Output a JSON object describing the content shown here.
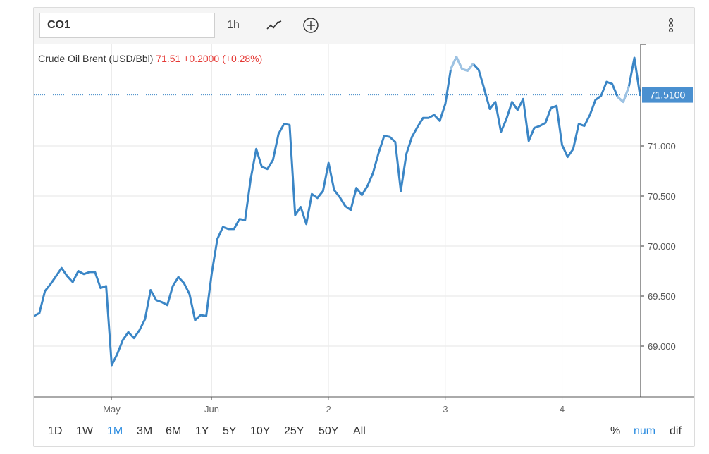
{
  "toolbar": {
    "symbol_value": "CO1",
    "interval": "1h",
    "chart_type_icon": "line-chart-icon",
    "add_icon": "plus-circle-icon",
    "menu_icon": "vertical-ellipsis-icon"
  },
  "legend": {
    "name": "Crude Oil Brent (USD/Bbl)",
    "price": "71.51",
    "change": "+0.2000",
    "change_pct": "(+0.28%)"
  },
  "last_price_label": "71.5100",
  "ranges": [
    {
      "label": "1D",
      "active": false
    },
    {
      "label": "1W",
      "active": false
    },
    {
      "label": "1M",
      "active": true
    },
    {
      "label": "3M",
      "active": false
    },
    {
      "label": "6M",
      "active": false
    },
    {
      "label": "1Y",
      "active": false
    },
    {
      "label": "5Y",
      "active": false
    },
    {
      "label": "10Y",
      "active": false
    },
    {
      "label": "25Y",
      "active": false
    },
    {
      "label": "50Y",
      "active": false
    },
    {
      "label": "All",
      "active": false
    }
  ],
  "modes": [
    {
      "label": "%",
      "active": false
    },
    {
      "label": "num",
      "active": true
    },
    {
      "label": "dif",
      "active": false
    }
  ],
  "colors": {
    "line": "#3b86c6",
    "line_light": "#9ec3e3",
    "accent": "#2c8ce0",
    "red": "#e53935",
    "price_tag": "#4a90d0"
  },
  "chart_data": {
    "type": "line",
    "title": "Crude Oil Brent (USD/Bbl)",
    "x_labels": [
      {
        "label": "May",
        "index": 14
      },
      {
        "label": "Jun",
        "index": 32
      },
      {
        "label": "2",
        "index": 53
      },
      {
        "label": "3",
        "index": 74
      },
      {
        "label": "4",
        "index": 95
      }
    ],
    "y_ticks": [
      "69.000",
      "69.500",
      "70.000",
      "70.500",
      "71.000"
    ],
    "y_tick_values": [
      69.0,
      69.5,
      70.0,
      70.5,
      71.0
    ],
    "ylim": [
      68.6,
      72.0
    ],
    "last_value": 71.51,
    "values": [
      69.3,
      69.33,
      69.55,
      69.62,
      69.7,
      69.78,
      69.7,
      69.64,
      69.75,
      69.72,
      69.74,
      69.74,
      69.58,
      69.6,
      68.81,
      68.92,
      69.06,
      69.14,
      69.08,
      69.16,
      69.27,
      69.56,
      69.46,
      69.44,
      69.41,
      69.6,
      69.69,
      69.63,
      69.52,
      69.26,
      69.31,
      69.3,
      69.73,
      70.07,
      70.19,
      70.17,
      70.17,
      70.27,
      70.26,
      70.67,
      70.97,
      70.79,
      70.77,
      70.86,
      71.12,
      71.22,
      71.21,
      70.31,
      70.39,
      70.22,
      70.52,
      70.48,
      70.55,
      70.83,
      70.56,
      70.49,
      70.4,
      70.36,
      70.58,
      70.51,
      70.6,
      70.73,
      70.93,
      71.1,
      71.09,
      71.04,
      70.55,
      70.92,
      71.09,
      71.19,
      71.28,
      71.28,
      71.31,
      71.25,
      71.42,
      71.77,
      71.89,
      71.77,
      71.75,
      71.82,
      71.76,
      71.57,
      71.37,
      71.44,
      71.14,
      71.27,
      71.44,
      71.36,
      71.47,
      71.05,
      71.18,
      71.2,
      71.23,
      71.38,
      71.4,
      71.01,
      70.89,
      70.97,
      71.22,
      71.2,
      71.31,
      71.46,
      71.5,
      71.64,
      71.62,
      71.49,
      71.44,
      71.59,
      71.88,
      71.51
    ],
    "light_ranges": [
      [
        75,
        79
      ],
      [
        105,
        107
      ]
    ]
  }
}
